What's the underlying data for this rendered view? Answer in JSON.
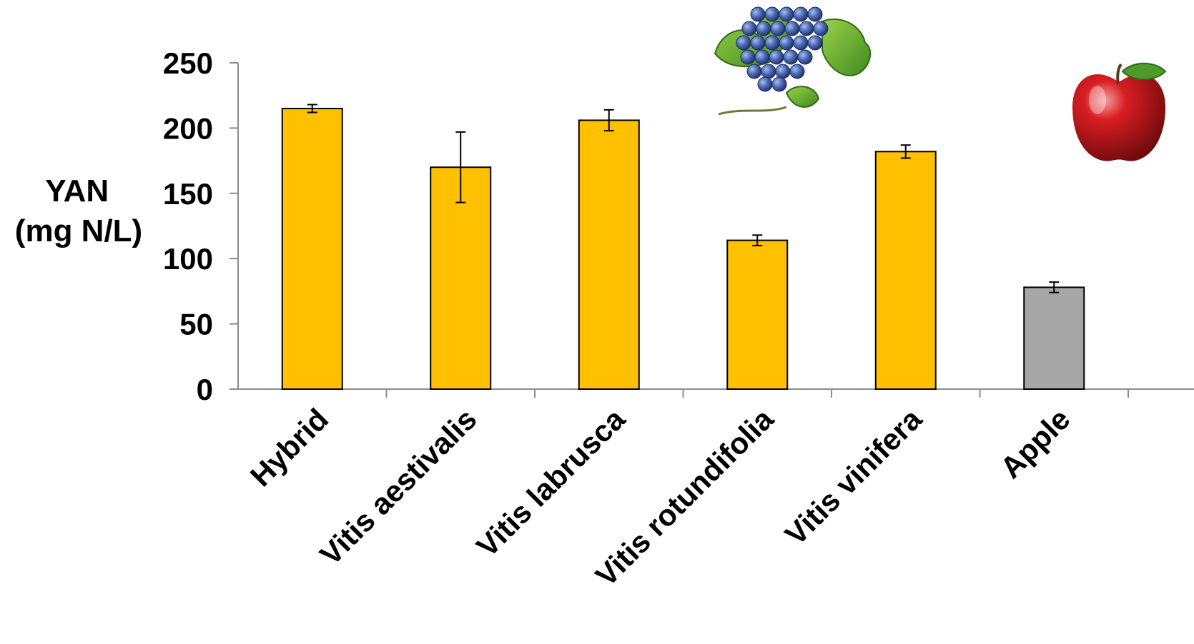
{
  "chart_data": {
    "type": "bar",
    "categories": [
      "Hybrid",
      "Vitis aestivalis",
      "Vitis labrusca",
      "Vitis rotundifolia",
      "Vitis vinifera",
      "Apple"
    ],
    "values": [
      215,
      170,
      206,
      114,
      182,
      78
    ],
    "errors": [
      3,
      27,
      8,
      4,
      5,
      4
    ],
    "bar_colors": [
      "#FFC000",
      "#FFC000",
      "#FFC000",
      "#FFC000",
      "#FFC000",
      "#A6A6A6"
    ],
    "ylabel": [
      "YAN",
      "(mg N/L)"
    ],
    "xlabel": "",
    "title": "",
    "ylim": [
      0,
      250
    ],
    "yticks": [
      0,
      50,
      100,
      150,
      200,
      250
    ],
    "grid": false,
    "legend": "none",
    "decorations": [
      "grape-cluster-image",
      "apple-image"
    ]
  }
}
